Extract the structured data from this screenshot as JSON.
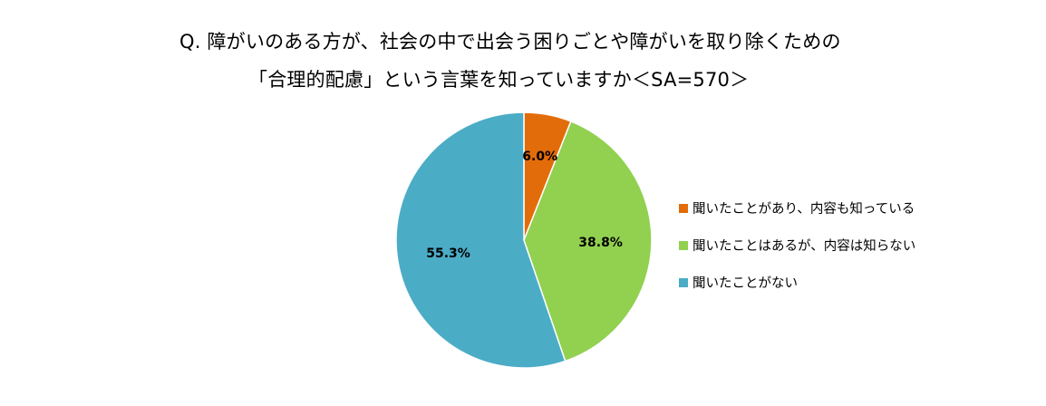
{
  "title": {
    "line1": "Q. 障がいのある方が、社会の中で出会う困りごとや障がいを取り除くための",
    "line2": "「合理的配慮」という言葉を知っていますか＜SA=570＞"
  },
  "chart_data": {
    "type": "pie",
    "title": "Q. 障がいのある方が、社会の中で出会う困りごとや障がいを取り除くための「合理的配慮」という言葉を知っていますか＜SA=570＞",
    "start_angle": "12 o'clock",
    "direction": "clockwise",
    "legend_position": "right",
    "slices": [
      {
        "name": "聞いたことがあり、内容も知っている",
        "value": 6.0,
        "label": "6.0%",
        "color": "#E36C0A"
      },
      {
        "name": "聞いたことはあるが、内容は知らない",
        "value": 38.8,
        "label": "38.8%",
        "color": "#92D050"
      },
      {
        "name": "聞いたことがない",
        "value": 55.3,
        "label": "55.3%",
        "color": "#4BACC6"
      }
    ]
  }
}
